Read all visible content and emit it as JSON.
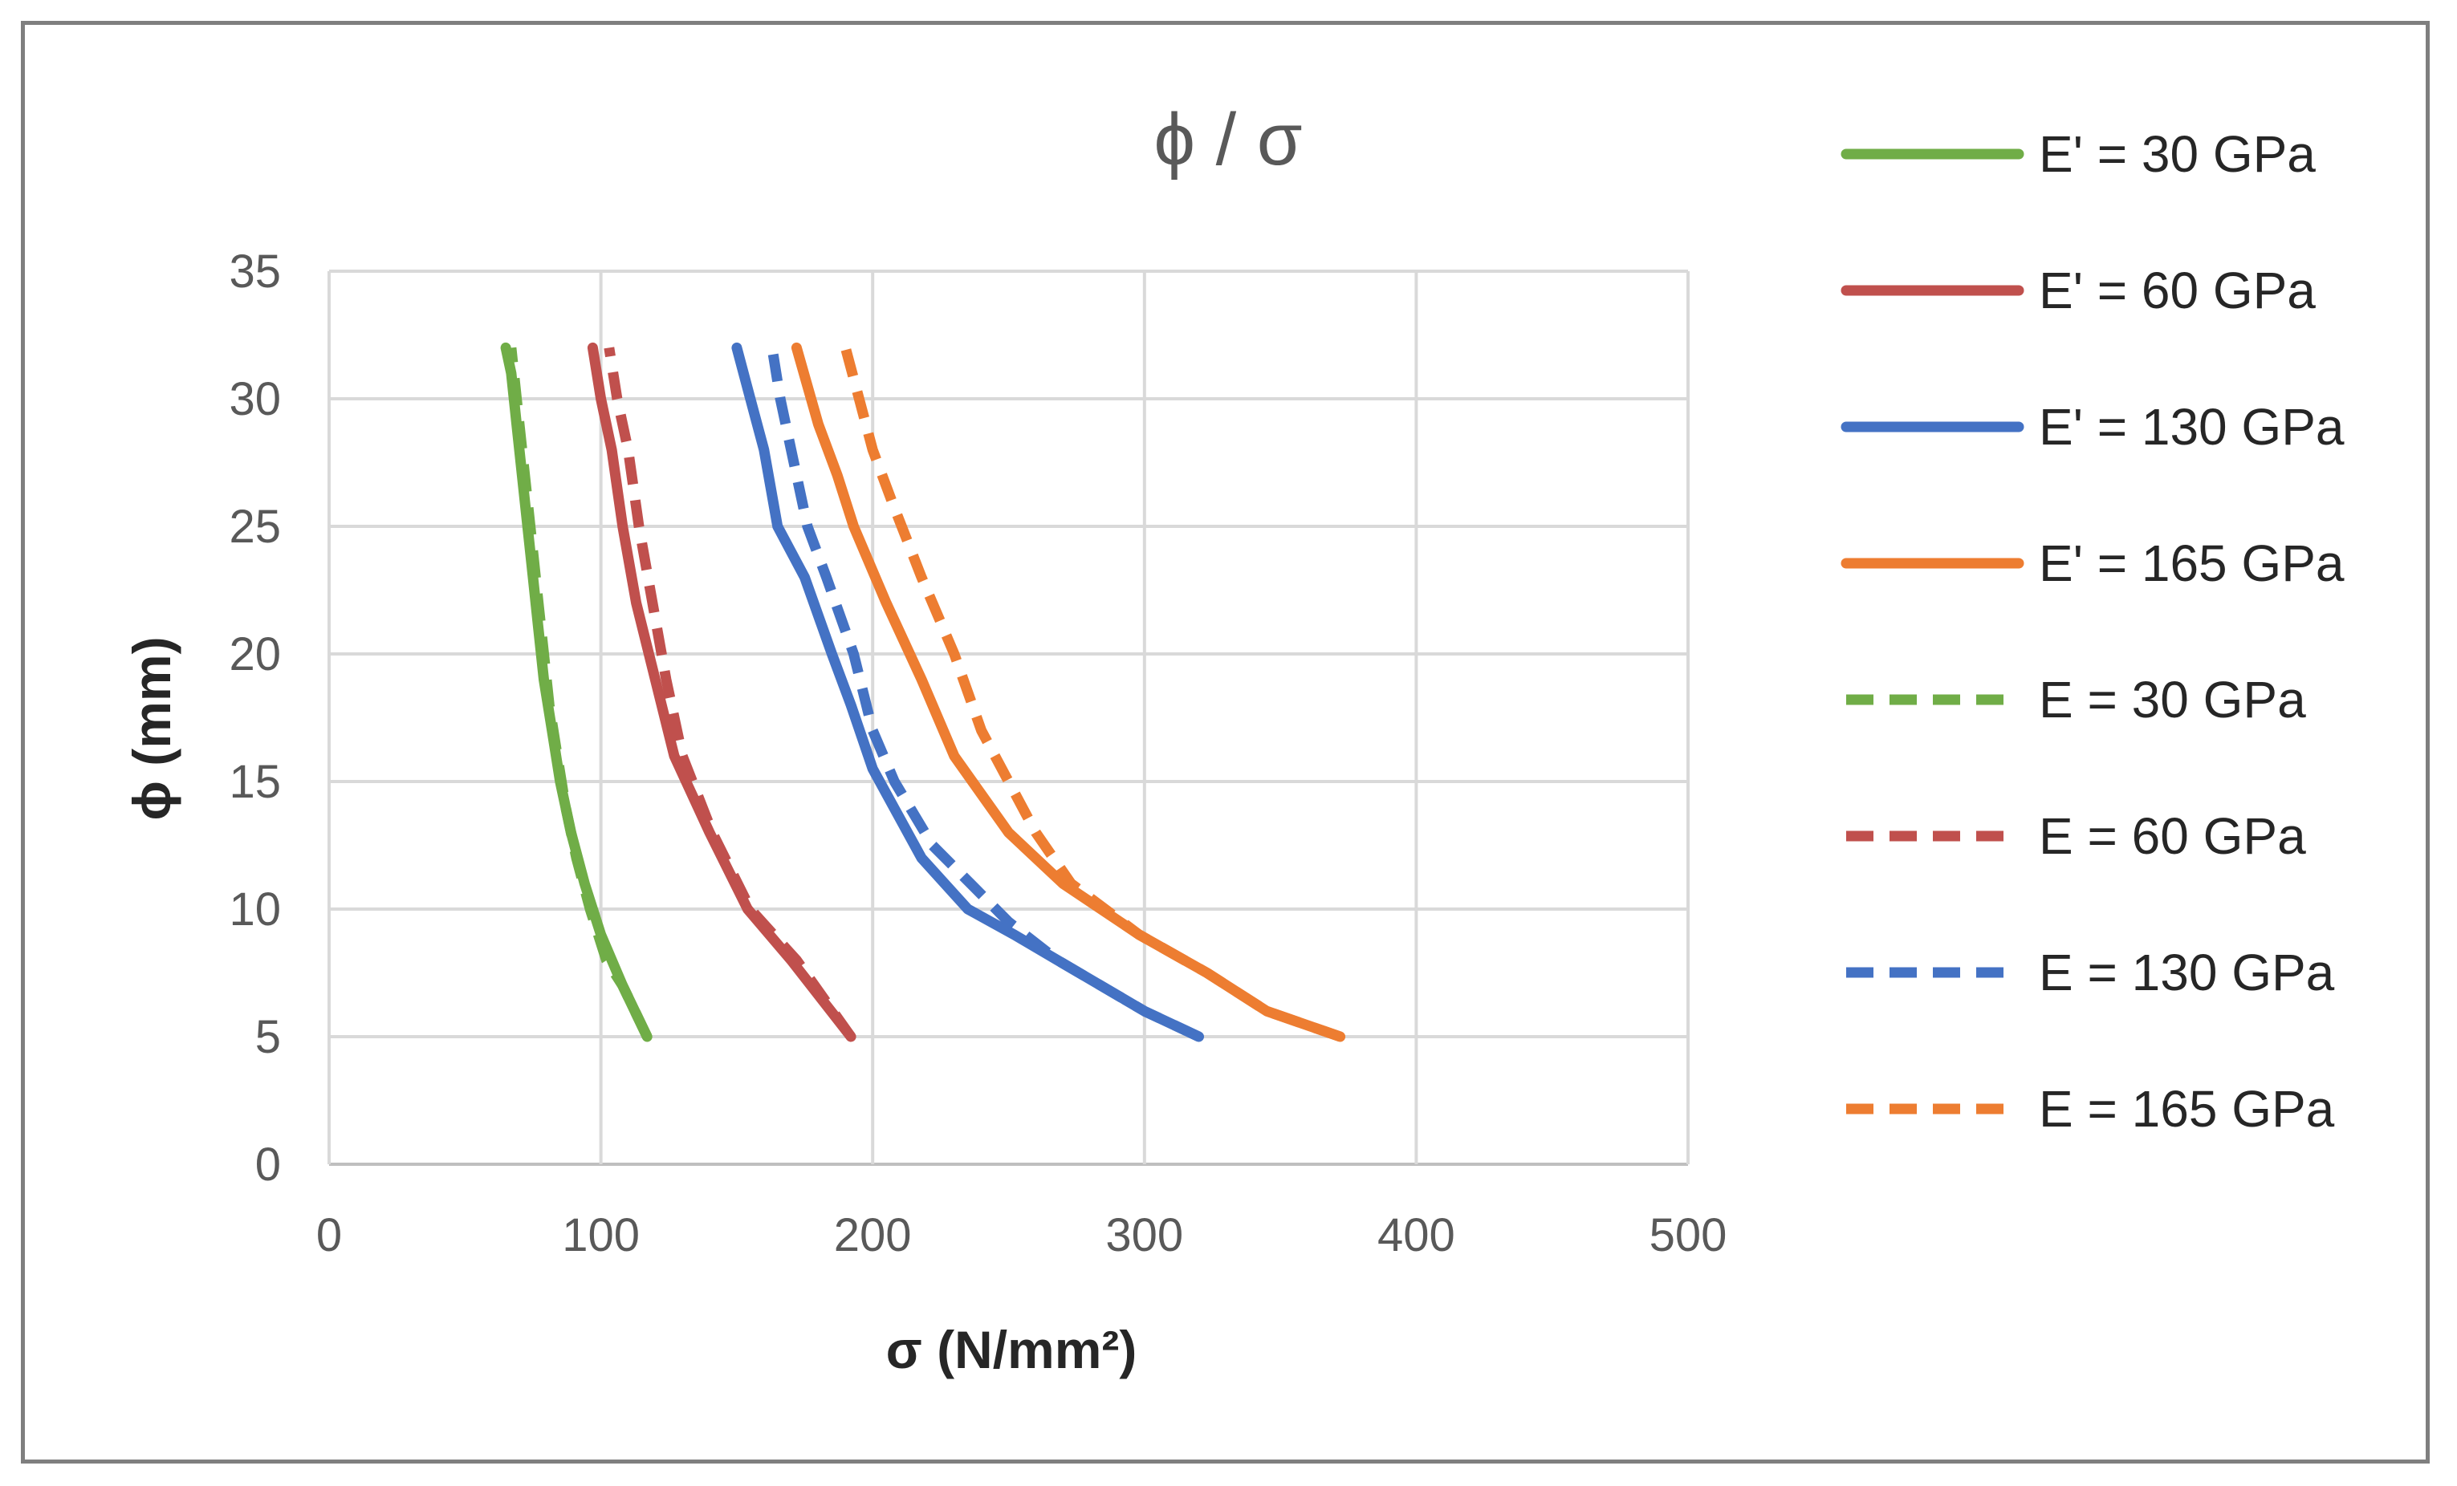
{
  "chart_data": {
    "type": "line",
    "title": "ϕ / σ",
    "xlabel": "σ (N/mm²)",
    "ylabel": "ϕ (mm)",
    "xlim": [
      0,
      500
    ],
    "ylim": [
      0,
      35
    ],
    "xticks": [
      0,
      100,
      200,
      300,
      400,
      500
    ],
    "yticks": [
      0,
      5,
      10,
      15,
      20,
      25,
      30,
      35
    ],
    "grid": true,
    "legend_position": "right",
    "series": [
      {
        "name": "E' = 30 GPa",
        "color": "#70ad47",
        "dash": "solid",
        "points": [
          [
            117,
            5
          ],
          [
            108,
            7
          ],
          [
            100,
            9
          ],
          [
            94,
            11
          ],
          [
            89,
            13
          ],
          [
            85,
            15
          ],
          [
            82,
            17
          ],
          [
            79,
            19
          ],
          [
            77,
            21
          ],
          [
            75,
            23
          ],
          [
            73,
            25
          ],
          [
            71,
            27
          ],
          [
            69,
            29
          ],
          [
            67,
            31
          ],
          [
            65,
            32
          ]
        ]
      },
      {
        "name": "E' = 60 GPa",
        "color": "#c0504d",
        "dash": "solid",
        "points": [
          [
            192,
            5
          ],
          [
            170,
            8
          ],
          [
            154,
            10
          ],
          [
            140,
            13
          ],
          [
            127,
            16
          ],
          [
            120,
            19
          ],
          [
            113,
            22
          ],
          [
            108,
            25
          ],
          [
            104,
            28
          ],
          [
            100,
            30
          ],
          [
            97,
            32
          ]
        ]
      },
      {
        "name": "E' = 130 GPa",
        "color": "#4472c4",
        "dash": "solid",
        "points": [
          [
            320,
            5
          ],
          [
            300,
            6
          ],
          [
            268,
            8
          ],
          [
            252,
            9
          ],
          [
            235,
            10
          ],
          [
            218,
            12
          ],
          [
            200,
            15.5
          ],
          [
            192,
            18
          ],
          [
            185,
            20
          ],
          [
            175,
            23
          ],
          [
            165,
            25
          ],
          [
            160,
            28
          ],
          [
            155,
            30
          ],
          [
            150,
            32
          ]
        ]
      },
      {
        "name": "E' = 165 GPa",
        "color": "#ed7d31",
        "dash": "solid",
        "points": [
          [
            372,
            5
          ],
          [
            345,
            6
          ],
          [
            323,
            7.5
          ],
          [
            298,
            9
          ],
          [
            270,
            11
          ],
          [
            250,
            13
          ],
          [
            230,
            16
          ],
          [
            218,
            19
          ],
          [
            205,
            22
          ],
          [
            193,
            25
          ],
          [
            187,
            27
          ],
          [
            180,
            29
          ],
          [
            172,
            32
          ]
        ]
      },
      {
        "name": "E = 30 GPa",
        "color": "#70ad47",
        "dash": "dashed",
        "points": [
          [
            117,
            5
          ],
          [
            108,
            7
          ],
          [
            102,
            8
          ],
          [
            96,
            10
          ],
          [
            91,
            12
          ],
          [
            87,
            14
          ],
          [
            84,
            16
          ],
          [
            81,
            18
          ],
          [
            79,
            20
          ],
          [
            77,
            22
          ],
          [
            75,
            24
          ],
          [
            73,
            26
          ],
          [
            71,
            28
          ],
          [
            69,
            30
          ],
          [
            67,
            32
          ]
        ]
      },
      {
        "name": "E = 60 GPa",
        "color": "#c0504d",
        "dash": "dashed",
        "points": [
          [
            192,
            5
          ],
          [
            172,
            8
          ],
          [
            155,
            10
          ],
          [
            141,
            13
          ],
          [
            130,
            16
          ],
          [
            124,
            19
          ],
          [
            119,
            22
          ],
          [
            114,
            25
          ],
          [
            110,
            28
          ],
          [
            106,
            30
          ],
          [
            103,
            32
          ]
        ]
      },
      {
        "name": "E = 130 GPa",
        "color": "#4472c4",
        "dash": "dashed",
        "points": [
          [
            320,
            5
          ],
          [
            300,
            6
          ],
          [
            268,
            8
          ],
          [
            250,
            9.5
          ],
          [
            236,
            11
          ],
          [
            222,
            12.5
          ],
          [
            208,
            15
          ],
          [
            200,
            17
          ],
          [
            193,
            20
          ],
          [
            183,
            23
          ],
          [
            176,
            25
          ],
          [
            170,
            28
          ],
          [
            166,
            30
          ],
          [
            163,
            32
          ]
        ]
      },
      {
        "name": "E = 165 GPa",
        "color": "#ed7d31",
        "dash": "dashed",
        "points": [
          [
            372,
            5
          ],
          [
            345,
            6
          ],
          [
            323,
            7.5
          ],
          [
            298,
            9
          ],
          [
            273,
            11
          ],
          [
            260,
            13
          ],
          [
            250,
            15
          ],
          [
            240,
            17
          ],
          [
            230,
            20
          ],
          [
            218,
            23
          ],
          [
            207,
            26
          ],
          [
            200,
            28
          ],
          [
            195,
            30
          ],
          [
            190,
            32
          ]
        ]
      }
    ]
  }
}
